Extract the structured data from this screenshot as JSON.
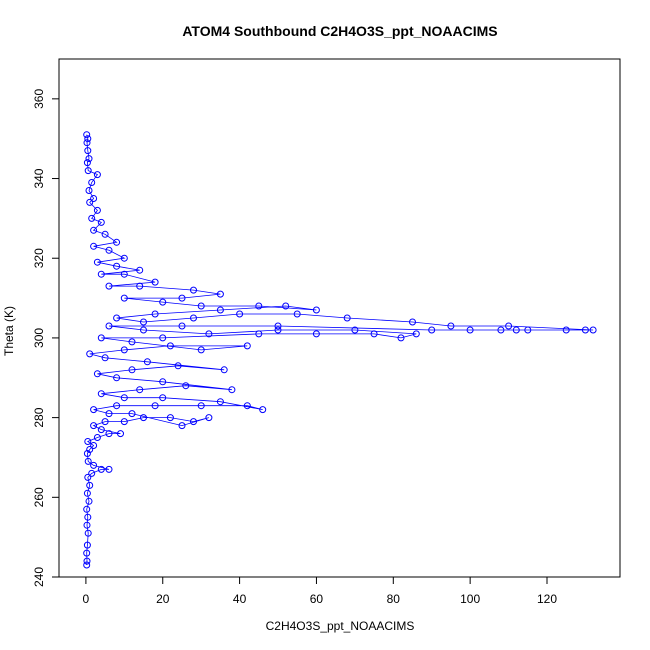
{
  "chart_data": {
    "type": "scatter",
    "title": "ATOM4 Southbound C2H4O3S_ppt_NOAACIMS",
    "xlabel": "C2H4O3S_ppt_NOAACIMS",
    "ylabel": "Theta (K)",
    "xlim": [
      -7,
      139
    ],
    "ylim": [
      240,
      370
    ],
    "x_ticks": [
      0,
      20,
      40,
      60,
      80,
      100,
      120
    ],
    "y_ticks": [
      240,
      260,
      280,
      300,
      320,
      340,
      360
    ],
    "grid": false,
    "legend": "none",
    "marker": "open-circle",
    "connected": true,
    "colors": {
      "series": "#0000ff",
      "axes": "#000000"
    },
    "series": [
      {
        "values": [
          [
            0.2,
            243
          ],
          [
            0.3,
            244
          ],
          [
            0.2,
            246
          ],
          [
            0.4,
            248
          ],
          [
            0.6,
            251
          ],
          [
            0.3,
            253
          ],
          [
            0.5,
            255
          ],
          [
            0.2,
            257
          ],
          [
            0.8,
            259
          ],
          [
            0.4,
            261
          ],
          [
            1.0,
            263
          ],
          [
            0.5,
            265
          ],
          [
            1.5,
            266
          ],
          [
            4,
            267
          ],
          [
            6,
            267
          ],
          [
            2,
            268
          ],
          [
            0.6,
            269
          ],
          [
            0.4,
            271
          ],
          [
            1,
            272
          ],
          [
            2,
            273
          ],
          [
            0.5,
            274
          ],
          [
            3,
            275
          ],
          [
            6,
            276
          ],
          [
            9,
            276
          ],
          [
            4,
            277
          ],
          [
            2,
            278
          ],
          [
            5,
            279
          ],
          [
            10,
            279
          ],
          [
            15,
            280
          ],
          [
            22,
            280
          ],
          [
            28,
            279
          ],
          [
            32,
            280
          ],
          [
            25,
            278
          ],
          [
            12,
            281
          ],
          [
            6,
            281
          ],
          [
            2,
            282
          ],
          [
            8,
            283
          ],
          [
            18,
            283
          ],
          [
            30,
            283
          ],
          [
            42,
            283
          ],
          [
            46,
            282
          ],
          [
            35,
            284
          ],
          [
            20,
            285
          ],
          [
            10,
            285
          ],
          [
            4,
            286
          ],
          [
            14,
            287
          ],
          [
            26,
            288
          ],
          [
            38,
            287
          ],
          [
            20,
            289
          ],
          [
            8,
            290
          ],
          [
            3,
            291
          ],
          [
            12,
            292
          ],
          [
            24,
            293
          ],
          [
            36,
            292
          ],
          [
            16,
            294
          ],
          [
            5,
            295
          ],
          [
            1,
            296
          ],
          [
            10,
            297
          ],
          [
            22,
            298
          ],
          [
            42,
            298
          ],
          [
            30,
            297
          ],
          [
            12,
            299
          ],
          [
            4,
            300
          ],
          [
            20,
            300
          ],
          [
            45,
            301
          ],
          [
            60,
            301
          ],
          [
            75,
            301
          ],
          [
            82,
            300
          ],
          [
            86,
            301
          ],
          [
            70,
            302
          ],
          [
            50,
            302
          ],
          [
            32,
            301
          ],
          [
            15,
            302
          ],
          [
            6,
            303
          ],
          [
            25,
            303
          ],
          [
            50,
            303
          ],
          [
            90,
            302
          ],
          [
            100,
            302
          ],
          [
            108,
            302
          ],
          [
            112,
            302
          ],
          [
            115,
            302
          ],
          [
            125,
            302
          ],
          [
            130,
            302
          ],
          [
            132,
            302
          ],
          [
            110,
            303
          ],
          [
            95,
            303
          ],
          [
            85,
            304
          ],
          [
            68,
            305
          ],
          [
            55,
            306
          ],
          [
            40,
            306
          ],
          [
            28,
            305
          ],
          [
            15,
            304
          ],
          [
            8,
            305
          ],
          [
            18,
            306
          ],
          [
            35,
            307
          ],
          [
            52,
            308
          ],
          [
            60,
            307
          ],
          [
            45,
            308
          ],
          [
            30,
            308
          ],
          [
            20,
            309
          ],
          [
            10,
            310
          ],
          [
            25,
            310
          ],
          [
            35,
            311
          ],
          [
            28,
            312
          ],
          [
            14,
            313
          ],
          [
            6,
            313
          ],
          [
            18,
            314
          ],
          [
            10,
            316
          ],
          [
            4,
            316
          ],
          [
            14,
            317
          ],
          [
            8,
            318
          ],
          [
            3,
            319
          ],
          [
            10,
            320
          ],
          [
            6,
            322
          ],
          [
            2,
            323
          ],
          [
            8,
            324
          ],
          [
            5,
            326
          ],
          [
            2,
            327
          ],
          [
            4,
            329
          ],
          [
            1.5,
            330
          ],
          [
            3,
            332
          ],
          [
            1,
            334
          ],
          [
            2,
            335
          ],
          [
            0.8,
            337
          ],
          [
            1.5,
            339
          ],
          [
            3,
            341
          ],
          [
            0.6,
            342
          ],
          [
            0.4,
            344
          ],
          [
            0.8,
            345
          ],
          [
            0.5,
            347
          ],
          [
            0.3,
            349
          ],
          [
            0.5,
            350
          ],
          [
            0.2,
            351
          ]
        ]
      }
    ]
  }
}
